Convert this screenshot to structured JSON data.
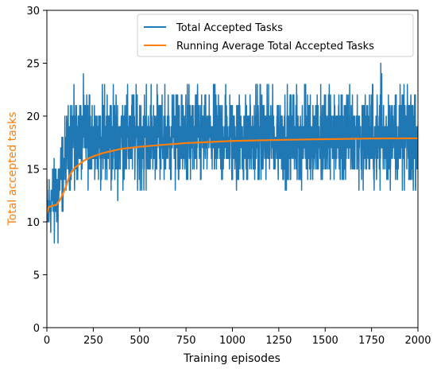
{
  "chart_data": {
    "type": "line",
    "xlabel": "Training episodes",
    "ylabel": "Total accepted tasks",
    "ylabel_color": "#ff7f0e",
    "xlim": [
      0,
      2000
    ],
    "ylim": [
      0,
      30
    ],
    "xticks": [
      0,
      250,
      500,
      750,
      1000,
      1250,
      1500,
      1750,
      2000
    ],
    "yticks": [
      0,
      5,
      10,
      15,
      20,
      25,
      30
    ],
    "grid": false,
    "legend_position": "top-right",
    "series": [
      {
        "name": "Total Accepted Tasks",
        "color": "#1f77b4",
        "style": "noisy",
        "x": [
          0,
          25,
          50,
          75,
          100,
          125,
          150,
          200,
          250,
          300,
          400,
          500,
          600,
          700,
          800,
          900,
          1000,
          1100,
          1200,
          1300,
          1400,
          1500,
          1600,
          1700,
          1800,
          1900,
          2000
        ],
        "y": [
          11,
          12,
          13,
          14,
          16,
          18,
          18,
          18,
          18,
          18,
          18,
          18,
          18,
          18,
          18,
          18,
          18,
          18,
          18,
          18,
          18,
          18,
          18,
          18,
          18,
          18,
          18
        ],
        "min": 8,
        "max": 25
      },
      {
        "name": "Running Average Total Accepted Tasks",
        "color": "#ff7f0e",
        "style": "smooth",
        "x": [
          0,
          10,
          25,
          50,
          75,
          100,
          125,
          150,
          200,
          250,
          300,
          400,
          500,
          600,
          750,
          1000,
          1250,
          1500,
          1750,
          2000
        ],
        "y": [
          10.8,
          11.4,
          11.5,
          11.6,
          12.2,
          13.2,
          14.5,
          15.1,
          15.8,
          16.2,
          16.5,
          16.9,
          17.1,
          17.25,
          17.45,
          17.65,
          17.75,
          17.82,
          17.88,
          17.9
        ]
      }
    ]
  }
}
